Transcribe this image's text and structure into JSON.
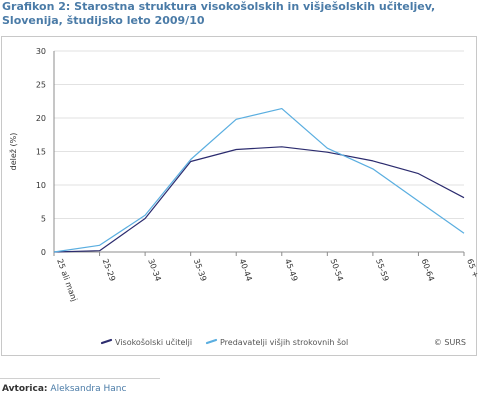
{
  "page": {
    "title": "Grafikon 2: Starostna struktura visokošolskih in višješolskih učiteljev, Slovenija, študijsko leto 2009/10",
    "author_label": "Avtorica:",
    "author_name": "Aleksandra Hanc",
    "source_mark": "© SURS"
  },
  "chart_data": {
    "type": "line",
    "title": "Grafikon 2: Starostna struktura visokošolskih in višješolskih učiteljev, Slovenija, študijsko leto 2009/10",
    "xlabel": "",
    "ylabel": "delež (%)",
    "ylim": [
      0,
      30
    ],
    "yticks": [
      0,
      5,
      10,
      15,
      20,
      25,
      30
    ],
    "grid": "horizontal",
    "legend": "bottom",
    "categories": [
      "25 ali manj",
      "25-29",
      "30-34",
      "35-39",
      "40-44",
      "45-49",
      "50-54",
      "55-59",
      "60-64",
      "65 +"
    ],
    "series": [
      {
        "name": "Visokošolski učitelji",
        "color": "#2b2b6e",
        "values": [
          0.0,
          0.2,
          5.0,
          13.5,
          15.3,
          15.7,
          14.9,
          13.6,
          11.7,
          8.1
        ]
      },
      {
        "name": "Predavatelji višjih strokovnih šol",
        "color": "#5aaee0",
        "values": [
          0.0,
          1.0,
          5.5,
          13.8,
          19.8,
          21.4,
          15.5,
          12.4,
          7.6,
          2.8
        ]
      }
    ]
  }
}
